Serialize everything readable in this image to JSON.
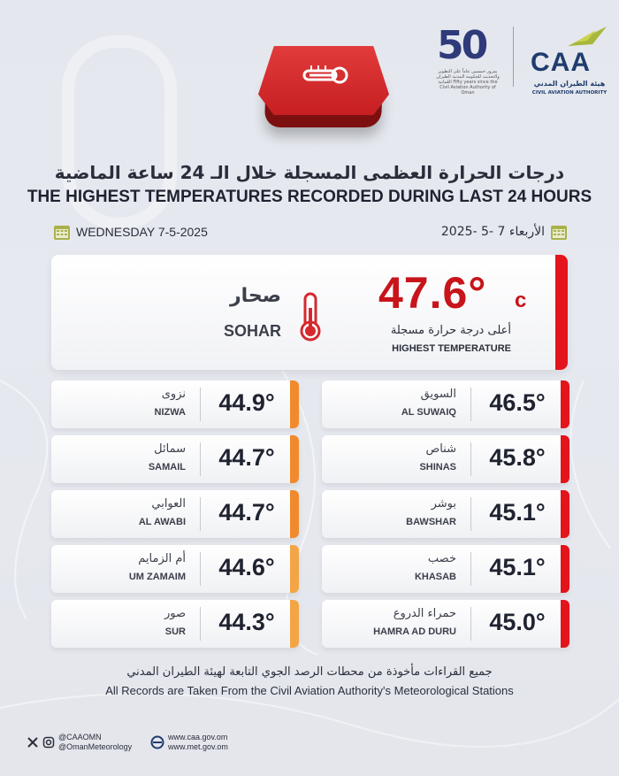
{
  "colors": {
    "accent_red": "#e3141b",
    "temp_red": "#c8141b",
    "orange": "#f08a2c",
    "orange_light": "#f3a545",
    "background": "#e5e7ee",
    "brand_blue": "#1f3c6e"
  },
  "logos": {
    "anniversary_digits": "50",
    "anniversary_caption": "بمرور خمسين عاماً على التطوير والتحديث للحكومة المدنية الطيران العُمانية Fifty years since the Civil Aviation Authority of Oman",
    "caa_abbr": "CAA",
    "caa_name_ar": "هيئة الطيران المدني",
    "caa_name_en": "CIVIL AVIATION AUTHORITY"
  },
  "header": {
    "icon": "thermometer-icon",
    "title_ar": "درجات الحرارة العظمى المسجلة خلال الـ 24 ساعة الماضية",
    "title_en": "THE HIGHEST TEMPERATURES RECORDED DURING LAST 24 HOURS",
    "date_en": "WEDNESDAY 7-5-2025",
    "date_ar": "الأربعاء 7 -5 -2025"
  },
  "highest": {
    "city_ar": "صحار",
    "city_en": "SOHAR",
    "value": "47.6°",
    "unit": "c",
    "label_ar": "أعلى درجة حرارة مسجلة",
    "label_en": "HIGHEST TEMPERATURE",
    "accent": "#e3141b"
  },
  "stations_right": [
    {
      "name_ar": "السويق",
      "name_en": "AL SUWAIQ",
      "value": "46.5°",
      "accent": "#e3141b"
    },
    {
      "name_ar": "شناص",
      "name_en": "SHINAS",
      "value": "45.8°",
      "accent": "#e3141b"
    },
    {
      "name_ar": "بوشر",
      "name_en": "BAWSHAR",
      "value": "45.1°",
      "accent": "#e3141b"
    },
    {
      "name_ar": "خصب",
      "name_en": "KHASAB",
      "value": "45.1°",
      "accent": "#e3141b"
    },
    {
      "name_ar": "حمراء الدروع",
      "name_en": "HAMRA AD DURU",
      "value": "45.0°",
      "accent": "#e3141b"
    }
  ],
  "stations_left": [
    {
      "name_ar": "نزوى",
      "name_en": "NIZWA",
      "value": "44.9°",
      "accent": "#f08a2c"
    },
    {
      "name_ar": "سمائل",
      "name_en": "SAMAIL",
      "value": "44.7°",
      "accent": "#f08a2c"
    },
    {
      "name_ar": "العوابي",
      "name_en": "AL AWABI",
      "value": "44.7°",
      "accent": "#f08a2c"
    },
    {
      "name_ar": "أم الزمايم",
      "name_en": "UM ZAMAIM",
      "value": "44.6°",
      "accent": "#f3a545"
    },
    {
      "name_ar": "صور",
      "name_en": "SUR",
      "value": "44.3°",
      "accent": "#f3a545"
    }
  ],
  "footer": {
    "note_ar": "جميع القراءات مأخوذة من محطات الرصد الجوي التابعة لهيئة الطيران المدني",
    "note_en": "All Records are Taken From the Civil Aviation Authority's Meteorological Stations",
    "handle_1": "@CAAOMN",
    "handle_2": "@OmanMeteorology",
    "url_1": "www.caa.gov.om",
    "url_2": "www.met.gov.om"
  }
}
